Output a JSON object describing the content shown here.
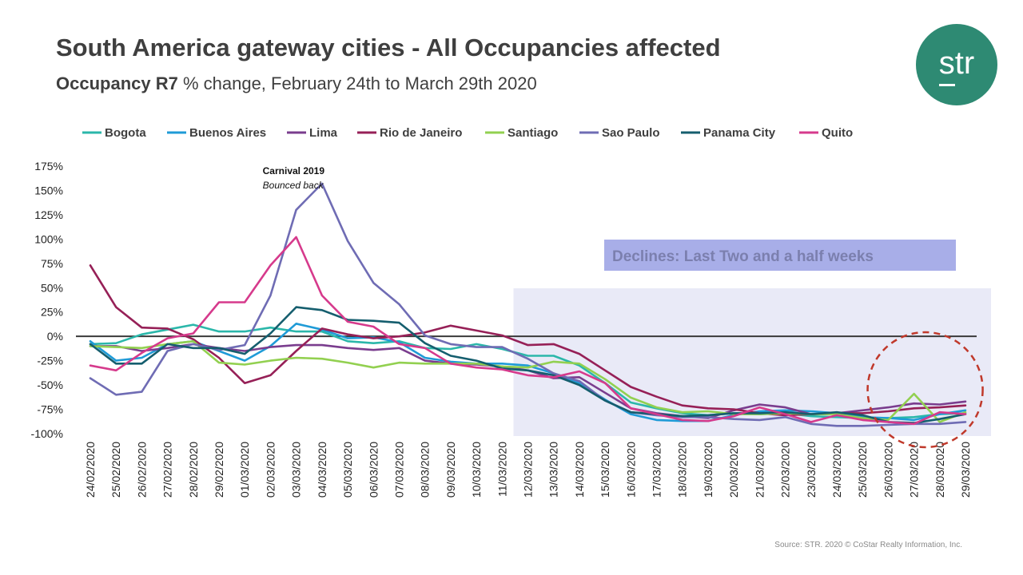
{
  "header": {
    "title": "South America gateway cities - All Occupancies affected",
    "subtitle_bold": "Occupancy R7",
    "subtitle_rest": " % change, February 24th to March 29th  2020"
  },
  "logo": {
    "text": "str",
    "color": "#2e8a73"
  },
  "footer": {
    "source": "Source: STR. 2020 © CoStar Realty Information, Inc."
  },
  "chart_data": {
    "type": "line",
    "title": "South America gateway cities - All Occupancies affected",
    "subtitle": "Occupancy R7 % change, February 24th to March 29th  2020",
    "xlabel": "",
    "ylabel": "",
    "ylim": [
      -100,
      175
    ],
    "yticks": [
      175,
      150,
      125,
      100,
      75,
      50,
      25,
      0,
      -25,
      -50,
      -75,
      -100
    ],
    "ytick_labels": [
      "175%",
      "150%",
      "125%",
      "100%",
      "75%",
      "50%",
      "25%",
      "0%",
      "-25%",
      "-50%",
      "-75%",
      "-100%"
    ],
    "legend_position": "top",
    "grid": false,
    "zero_line": true,
    "categories": [
      "24/02/2020",
      "25/02/2020",
      "26/02/2020",
      "27/02/2020",
      "28/02/2020",
      "29/02/2020",
      "01/03/2020",
      "02/03/2020",
      "03/03/2020",
      "04/03/2020",
      "05/03/2020",
      "06/03/2020",
      "07/03/2020",
      "08/03/2020",
      "09/03/2020",
      "10/03/2020",
      "11/03/2020",
      "12/03/2020",
      "13/03/2020",
      "14/03/2020",
      "15/03/2020",
      "16/03/2020",
      "17/03/2020",
      "18/03/2020",
      "19/03/2020",
      "20/03/2020",
      "21/03/2020",
      "22/03/2020",
      "23/03/2020",
      "24/03/2020",
      "25/03/2020",
      "26/03/2020",
      "27/03/2020",
      "28/03/2020",
      "29/03/2020"
    ],
    "series": [
      {
        "name": "Bogota",
        "color": "#2bb7aa",
        "values": [
          -8,
          -7,
          2,
          7,
          12,
          5,
          5,
          9,
          5,
          5,
          -5,
          -7,
          -5,
          -12,
          -13,
          -8,
          -13,
          -20,
          -20,
          -30,
          -48,
          -68,
          -74,
          -79,
          -81,
          -79,
          -80,
          -79,
          -82,
          -83,
          -84,
          -84,
          -83,
          -80,
          -79
        ]
      },
      {
        "name": "Buenos Aires",
        "color": "#1f9bd7",
        "values": [
          -5,
          -25,
          -22,
          -8,
          -5,
          -15,
          -25,
          -10,
          13,
          7,
          -2,
          -1,
          -6,
          -22,
          -26,
          -28,
          -28,
          -30,
          -38,
          -48,
          -65,
          -80,
          -86,
          -87,
          -87,
          -81,
          -77,
          -76,
          -77,
          -79,
          -83,
          -84,
          -86,
          -80,
          -76
        ]
      },
      {
        "name": "Lima",
        "color": "#7a3d8e",
        "values": [
          -10,
          -10,
          -15,
          -12,
          -8,
          -12,
          -15,
          -11,
          -9,
          -9,
          -12,
          -14,
          -12,
          -25,
          -28,
          -29,
          -31,
          -35,
          -43,
          -42,
          -58,
          -74,
          -79,
          -82,
          -84,
          -76,
          -70,
          -73,
          -80,
          -79,
          -76,
          -73,
          -69,
          -70,
          -67
        ]
      },
      {
        "name": "Rio de Janeiro",
        "color": "#962057",
        "values": [
          73,
          30,
          9,
          8,
          -3,
          -22,
          -48,
          -40,
          -15,
          8,
          2,
          -2,
          0,
          4,
          11,
          6,
          1,
          -9,
          -8,
          -18,
          -35,
          -52,
          -62,
          -71,
          -74,
          -75,
          -79,
          -81,
          -80,
          -79,
          -79,
          -77,
          -74,
          -73,
          -71
        ]
      },
      {
        "name": "Santiago",
        "color": "#92d050",
        "values": [
          -10,
          -11,
          -12,
          -8,
          -5,
          -27,
          -29,
          -25,
          -22,
          -23,
          -27,
          -32,
          -27,
          -28,
          -28,
          -28,
          -31,
          -32,
          -26,
          -28,
          -44,
          -63,
          -73,
          -78,
          -77,
          -80,
          -80,
          -79,
          -80,
          -80,
          -84,
          -86,
          -59,
          -88,
          -78
        ]
      },
      {
        "name": "Sao Paulo",
        "color": "#6f6cb4",
        "values": [
          -43,
          -60,
          -57,
          -15,
          -8,
          -14,
          -9,
          42,
          130,
          157,
          98,
          55,
          33,
          1,
          -8,
          -11,
          -11,
          -23,
          -38,
          -46,
          -66,
          -78,
          -81,
          -83,
          -83,
          -85,
          -86,
          -83,
          -90,
          -92,
          -92,
          -91,
          -90,
          -90,
          -88
        ]
      },
      {
        "name": "Panama City",
        "color": "#155e6e",
        "values": [
          -8,
          -28,
          -28,
          -8,
          -12,
          -12,
          -18,
          3,
          30,
          27,
          17,
          16,
          14,
          -7,
          -20,
          -25,
          -33,
          -35,
          -40,
          -50,
          -66,
          -78,
          -80,
          -82,
          -81,
          -79,
          -79,
          -78,
          -80,
          -78,
          -81,
          -88,
          -89,
          -85,
          -80
        ]
      },
      {
        "name": "Quito",
        "color": "#d63a8c",
        "values": [
          -30,
          -35,
          -17,
          -2,
          3,
          35,
          35,
          73,
          102,
          42,
          15,
          10,
          -8,
          -12,
          -28,
          -32,
          -34,
          -40,
          -42,
          -36,
          -48,
          -74,
          -80,
          -86,
          -87,
          -82,
          -73,
          -80,
          -88,
          -81,
          -86,
          -88,
          -90,
          -78,
          -80
        ]
      }
    ],
    "annotations": {
      "carnival_title": "Carnival 2019",
      "carnival_sub": "Bounced back",
      "declines_label": "Declines: Last Two and a half weeks"
    }
  }
}
